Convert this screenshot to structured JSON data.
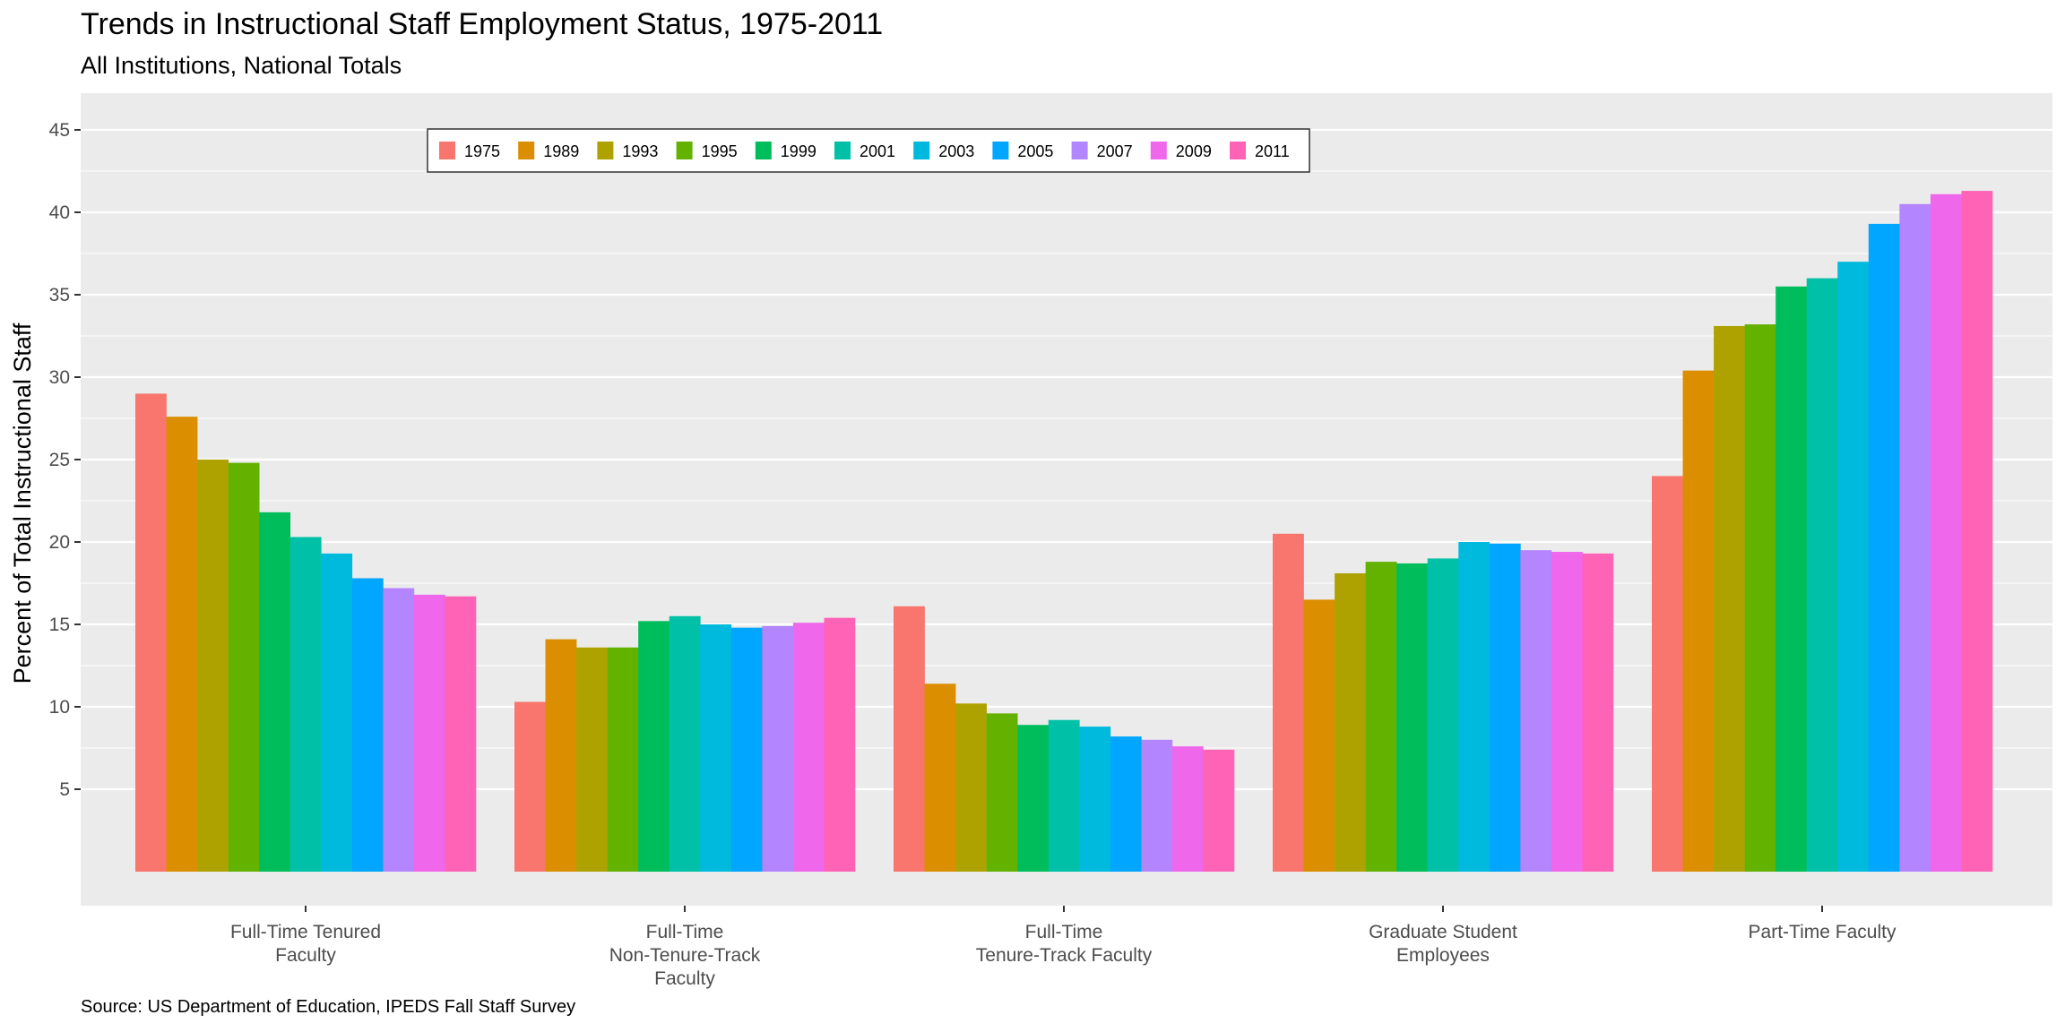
{
  "chart_data": {
    "type": "bar",
    "title": "Trends in Instructional Staff Employment Status, 1975-2011",
    "subtitle": "All Institutions, National Totals",
    "ylabel": "Percent of Total Instructional Staff",
    "xlabel": "",
    "source": "Source: US Department of Education, IPEDS Fall Staff Survey",
    "ylim": [
      0,
      47
    ],
    "yticks": [
      "5",
      "10",
      "15",
      "20",
      "25",
      "30",
      "35",
      "40",
      "45"
    ],
    "grid": true,
    "legend_position": "top-left",
    "categories": [
      [
        "Full-Time Tenured",
        "Faculty"
      ],
      [
        "Full-Time",
        "Non-Tenure-Track",
        "Faculty"
      ],
      [
        "Full-Time",
        "Tenure-Track Faculty"
      ],
      [
        "Graduate Student",
        "Employees"
      ],
      [
        "Part-Time Faculty"
      ]
    ],
    "series": [
      {
        "name": "1975",
        "color": "#F8766D",
        "values": [
          29.0,
          10.3,
          16.1,
          20.5,
          24.0
        ]
      },
      {
        "name": "1989",
        "color": "#DB8E00",
        "values": [
          27.6,
          14.1,
          11.4,
          16.5,
          30.4
        ]
      },
      {
        "name": "1993",
        "color": "#AEA200",
        "values": [
          25.0,
          13.6,
          10.2,
          18.1,
          33.1
        ]
      },
      {
        "name": "1995",
        "color": "#64B200",
        "values": [
          24.8,
          13.6,
          9.6,
          18.8,
          33.2
        ]
      },
      {
        "name": "1999",
        "color": "#00BD5C",
        "values": [
          21.8,
          15.2,
          8.9,
          18.7,
          35.5
        ]
      },
      {
        "name": "2001",
        "color": "#00C1A7",
        "values": [
          20.3,
          15.5,
          9.2,
          19.0,
          36.0
        ]
      },
      {
        "name": "2003",
        "color": "#00BADE",
        "values": [
          19.3,
          15.0,
          8.8,
          20.0,
          37.0
        ]
      },
      {
        "name": "2005",
        "color": "#00A6FF",
        "values": [
          17.8,
          14.8,
          8.2,
          19.9,
          39.3
        ]
      },
      {
        "name": "2007",
        "color": "#B385FF",
        "values": [
          17.2,
          14.9,
          8.0,
          19.5,
          40.5
        ]
      },
      {
        "name": "2009",
        "color": "#EF67EB",
        "values": [
          16.8,
          15.1,
          7.6,
          19.4,
          41.1
        ]
      },
      {
        "name": "2011",
        "color": "#FF63B6",
        "values": [
          16.7,
          15.4,
          7.4,
          19.3,
          41.3
        ]
      }
    ],
    "panel_color": "#EBEBEB",
    "grid_color": "#FFFFFF"
  }
}
